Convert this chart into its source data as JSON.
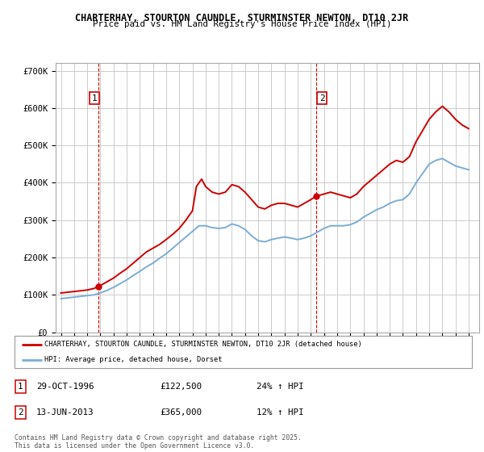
{
  "title_line1": "CHARTERHAY, STOURTON CAUNDLE, STURMINSTER NEWTON, DT10 2JR",
  "title_line2": "Price paid vs. HM Land Registry's House Price Index (HPI)",
  "ylim": [
    0,
    720000
  ],
  "yticks": [
    0,
    100000,
    200000,
    300000,
    400000,
    500000,
    600000,
    700000
  ],
  "ytick_labels": [
    "£0",
    "£100K",
    "£200K",
    "£300K",
    "£400K",
    "£500K",
    "£600K",
    "£700K"
  ],
  "xlim_start": 1993.6,
  "xlim_end": 2025.8,
  "xticks": [
    1994,
    1995,
    1996,
    1997,
    1998,
    1999,
    2000,
    2001,
    2002,
    2003,
    2004,
    2005,
    2006,
    2007,
    2008,
    2009,
    2010,
    2011,
    2012,
    2013,
    2014,
    2015,
    2016,
    2017,
    2018,
    2019,
    2020,
    2021,
    2022,
    2023,
    2024,
    2025
  ],
  "red_line_color": "#cc0000",
  "blue_line_color": "#7aadd4",
  "annotation_box_color": "#cc0000",
  "vline_color": "#cc0000",
  "grid_color": "#cccccc",
  "background_color": "#ffffff",
  "sale1_x": 1996.83,
  "sale1_y": 122500,
  "sale1_label": "1",
  "sale2_x": 2013.44,
  "sale2_y": 365000,
  "sale2_label": "2",
  "legend_label_red": "CHARTERHAY, STOURTON CAUNDLE, STURMINSTER NEWTON, DT10 2JR (detached house)",
  "legend_label_blue": "HPI: Average price, detached house, Dorset",
  "table_row1": [
    "1",
    "29-OCT-1996",
    "£122,500",
    "24% ↑ HPI"
  ],
  "table_row2": [
    "2",
    "13-JUN-2013",
    "£365,000",
    "12% ↑ HPI"
  ],
  "footer_text": "Contains HM Land Registry data © Crown copyright and database right 2025.\nThis data is licensed under the Open Government Licence v3.0.",
  "red_x": [
    1994.0,
    1994.5,
    1995.0,
    1995.5,
    1996.0,
    1996.5,
    1996.83,
    1997.0,
    1997.5,
    1998.0,
    1998.5,
    1999.0,
    1999.5,
    2000.0,
    2000.5,
    2001.0,
    2001.5,
    2002.0,
    2002.5,
    2003.0,
    2003.5,
    2004.0,
    2004.3,
    2004.7,
    2005.0,
    2005.5,
    2006.0,
    2006.5,
    2007.0,
    2007.5,
    2008.0,
    2008.5,
    2009.0,
    2009.5,
    2010.0,
    2010.5,
    2011.0,
    2011.5,
    2012.0,
    2012.5,
    2013.0,
    2013.44,
    2013.5,
    2014.0,
    2014.5,
    2015.0,
    2015.5,
    2016.0,
    2016.5,
    2017.0,
    2017.5,
    2018.0,
    2018.5,
    2019.0,
    2019.5,
    2020.0,
    2020.5,
    2021.0,
    2021.5,
    2022.0,
    2022.5,
    2023.0,
    2023.5,
    2024.0,
    2024.5,
    2025.0
  ],
  "red_y": [
    105000,
    107000,
    109000,
    111000,
    113000,
    117000,
    122500,
    125000,
    135000,
    145000,
    158000,
    170000,
    185000,
    200000,
    215000,
    225000,
    235000,
    248000,
    262000,
    278000,
    300000,
    325000,
    390000,
    410000,
    390000,
    375000,
    370000,
    375000,
    395000,
    390000,
    375000,
    355000,
    335000,
    330000,
    340000,
    345000,
    345000,
    340000,
    335000,
    345000,
    355000,
    365000,
    365000,
    370000,
    375000,
    370000,
    365000,
    360000,
    370000,
    390000,
    405000,
    420000,
    435000,
    450000,
    460000,
    455000,
    470000,
    510000,
    540000,
    570000,
    590000,
    605000,
    590000,
    570000,
    555000,
    545000
  ],
  "blue_x": [
    1994.0,
    1994.5,
    1995.0,
    1995.5,
    1996.0,
    1996.5,
    1997.0,
    1997.5,
    1998.0,
    1998.5,
    1999.0,
    1999.5,
    2000.0,
    2000.5,
    2001.0,
    2001.5,
    2002.0,
    2002.5,
    2003.0,
    2003.5,
    2004.0,
    2004.5,
    2005.0,
    2005.5,
    2006.0,
    2006.5,
    2007.0,
    2007.5,
    2008.0,
    2008.5,
    2009.0,
    2009.5,
    2010.0,
    2010.5,
    2011.0,
    2011.5,
    2012.0,
    2012.5,
    2013.0,
    2013.5,
    2014.0,
    2014.5,
    2015.0,
    2015.5,
    2016.0,
    2016.5,
    2017.0,
    2017.5,
    2018.0,
    2018.5,
    2019.0,
    2019.5,
    2020.0,
    2020.5,
    2021.0,
    2021.5,
    2022.0,
    2022.5,
    2023.0,
    2023.5,
    2024.0,
    2024.5,
    2025.0
  ],
  "blue_y": [
    90000,
    92000,
    94000,
    96000,
    98000,
    100000,
    105000,
    112000,
    120000,
    130000,
    140000,
    152000,
    163000,
    175000,
    185000,
    198000,
    210000,
    225000,
    240000,
    255000,
    270000,
    285000,
    285000,
    280000,
    278000,
    280000,
    290000,
    285000,
    275000,
    258000,
    245000,
    242000,
    248000,
    252000,
    255000,
    252000,
    248000,
    252000,
    258000,
    268000,
    278000,
    285000,
    285000,
    285000,
    288000,
    295000,
    308000,
    318000,
    328000,
    335000,
    345000,
    352000,
    355000,
    370000,
    400000,
    425000,
    450000,
    460000,
    465000,
    455000,
    445000,
    440000,
    435000
  ]
}
